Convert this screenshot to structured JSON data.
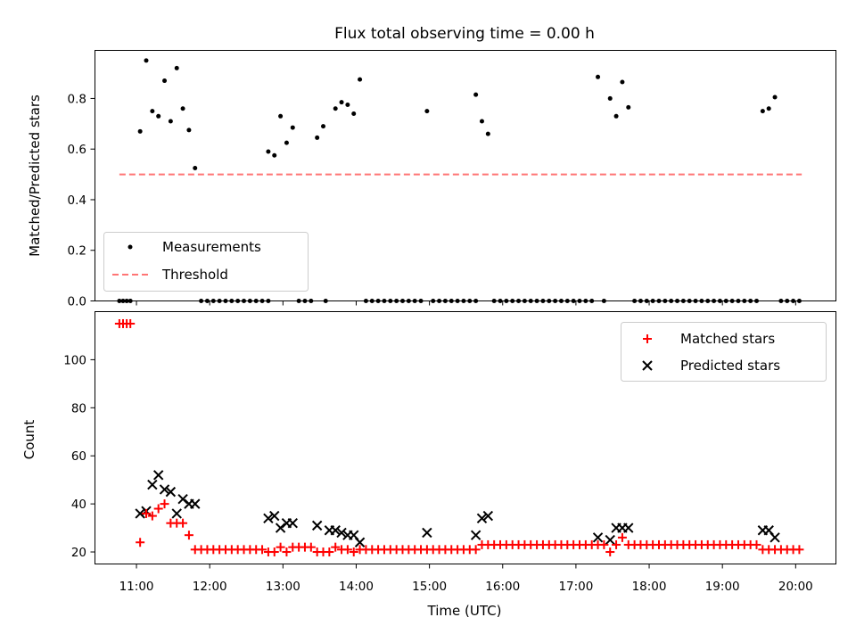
{
  "chart_data": [
    {
      "type": "scatter",
      "title": "Flux total observing time = 0.00 h",
      "xlabel": "",
      "ylabel": "Matched/Predicted stars",
      "ylim": [
        0,
        0.99
      ],
      "yticks": [
        "0.0",
        "0.2",
        "0.4",
        "0.6",
        "0.8"
      ],
      "xlim": [
        "10:26",
        "20:33"
      ],
      "grid": false,
      "legend_position": "lower-left",
      "series": [
        {
          "name": "Measurements",
          "marker": "dot",
          "color": "#000000",
          "points": [
            [
              "10:46",
              0
            ],
            [
              "10:49",
              0
            ],
            [
              "10:52",
              0
            ],
            [
              "10:55",
              0
            ],
            [
              "11:03",
              0.67
            ],
            [
              "11:08",
              0.95
            ],
            [
              "11:13",
              0.75
            ],
            [
              "11:18",
              0.73
            ],
            [
              "11:23",
              0.87
            ],
            [
              "11:28",
              0.71
            ],
            [
              "11:33",
              0.92
            ],
            [
              "11:38",
              0.76
            ],
            [
              "11:43",
              0.675
            ],
            [
              "11:48",
              0.525
            ],
            [
              "11:53",
              0
            ],
            [
              "11:58",
              0
            ],
            [
              "12:03",
              0
            ],
            [
              "12:08",
              0
            ],
            [
              "12:13",
              0
            ],
            [
              "12:18",
              0
            ],
            [
              "12:23",
              0
            ],
            [
              "12:28",
              0
            ],
            [
              "12:33",
              0
            ],
            [
              "12:38",
              0
            ],
            [
              "12:43",
              0
            ],
            [
              "12:48",
              0
            ],
            [
              "12:48",
              0.59
            ],
            [
              "12:53",
              0.575
            ],
            [
              "12:58",
              0.73
            ],
            [
              "13:03",
              0.625
            ],
            [
              "13:08",
              0.685
            ],
            [
              "13:13",
              0
            ],
            [
              "13:18",
              0
            ],
            [
              "13:23",
              0
            ],
            [
              "13:35",
              0
            ],
            [
              "13:28",
              0.645
            ],
            [
              "13:33",
              0.69
            ],
            [
              "13:43",
              0.76
            ],
            [
              "13:48",
              0.785
            ],
            [
              "13:53",
              0.775
            ],
            [
              "13:58",
              0.74
            ],
            [
              "14:03",
              0.875
            ],
            [
              "14:08",
              0
            ],
            [
              "14:13",
              0
            ],
            [
              "14:18",
              0
            ],
            [
              "14:23",
              0
            ],
            [
              "14:28",
              0
            ],
            [
              "14:33",
              0
            ],
            [
              "14:38",
              0
            ],
            [
              "14:43",
              0
            ],
            [
              "14:48",
              0
            ],
            [
              "14:53",
              0
            ],
            [
              "14:58",
              0.75
            ],
            [
              "15:03",
              0
            ],
            [
              "15:08",
              0
            ],
            [
              "15:13",
              0
            ],
            [
              "15:18",
              0
            ],
            [
              "15:23",
              0
            ],
            [
              "15:28",
              0
            ],
            [
              "15:33",
              0
            ],
            [
              "15:38",
              0
            ],
            [
              "15:38",
              0.815
            ],
            [
              "15:43",
              0.71
            ],
            [
              "15:48",
              0.66
            ],
            [
              "15:53",
              0
            ],
            [
              "15:58",
              0
            ],
            [
              "16:03",
              0
            ],
            [
              "16:08",
              0
            ],
            [
              "16:13",
              0
            ],
            [
              "16:18",
              0
            ],
            [
              "16:23",
              0
            ],
            [
              "16:28",
              0
            ],
            [
              "16:33",
              0
            ],
            [
              "16:38",
              0
            ],
            [
              "16:43",
              0
            ],
            [
              "16:48",
              0
            ],
            [
              "16:53",
              0
            ],
            [
              "16:58",
              0
            ],
            [
              "17:03",
              0
            ],
            [
              "17:08",
              0
            ],
            [
              "17:13",
              0
            ],
            [
              "17:23",
              0
            ],
            [
              "17:18",
              0.885
            ],
            [
              "17:28",
              0.8
            ],
            [
              "17:33",
              0.73
            ],
            [
              "17:38",
              0.865
            ],
            [
              "17:43",
              0.765
            ],
            [
              "17:48",
              0
            ],
            [
              "17:53",
              0
            ],
            [
              "17:58",
              0
            ],
            [
              "18:03",
              0
            ],
            [
              "18:08",
              0
            ],
            [
              "18:13",
              0
            ],
            [
              "18:18",
              0
            ],
            [
              "18:23",
              0
            ],
            [
              "18:28",
              0
            ],
            [
              "18:33",
              0
            ],
            [
              "18:38",
              0
            ],
            [
              "18:43",
              0
            ],
            [
              "18:48",
              0
            ],
            [
              "18:53",
              0
            ],
            [
              "18:58",
              0
            ],
            [
              "19:03",
              0
            ],
            [
              "19:08",
              0
            ],
            [
              "19:13",
              0
            ],
            [
              "19:18",
              0
            ],
            [
              "19:23",
              0
            ],
            [
              "19:28",
              0
            ],
            [
              "19:33",
              0.75
            ],
            [
              "19:38",
              0.76
            ],
            [
              "19:43",
              0.805
            ],
            [
              "19:48",
              0
            ],
            [
              "19:53",
              0
            ],
            [
              "19:58",
              0
            ],
            [
              "20:03",
              0
            ]
          ]
        },
        {
          "name": "Threshold",
          "line": "dashed",
          "color": "#ff7575",
          "x": [
            "10:46",
            "20:05"
          ],
          "y": [
            0.5,
            0.5
          ]
        }
      ]
    },
    {
      "type": "scatter",
      "title": "",
      "xlabel": "Time (UTC)",
      "ylabel": "Count",
      "ylim": [
        15,
        120
      ],
      "yticks": [
        "20",
        "40",
        "60",
        "80",
        "100"
      ],
      "xlim": [
        "10:26",
        "20:33"
      ],
      "xticks": [
        "11:00",
        "12:00",
        "13:00",
        "14:00",
        "15:00",
        "16:00",
        "17:00",
        "18:00",
        "19:00",
        "20:00"
      ],
      "grid": false,
      "legend_position": "top-right",
      "series": [
        {
          "name": "Matched stars",
          "marker": "plus",
          "color": "#ff0000",
          "points": [
            [
              "10:46",
              115
            ],
            [
              "10:49",
              115
            ],
            [
              "10:52",
              115
            ],
            [
              "10:55",
              115
            ],
            [
              "11:03",
              24
            ],
            [
              "11:08",
              36
            ],
            [
              "11:13",
              35
            ],
            [
              "11:18",
              38
            ],
            [
              "11:23",
              40
            ],
            [
              "11:28",
              32
            ],
            [
              "11:33",
              32
            ],
            [
              "11:38",
              32
            ],
            [
              "11:43",
              27
            ],
            [
              "11:48",
              21
            ],
            [
              "11:53",
              21
            ],
            [
              "11:58",
              21
            ],
            [
              "12:03",
              21
            ],
            [
              "12:08",
              21
            ],
            [
              "12:13",
              21
            ],
            [
              "12:18",
              21
            ],
            [
              "12:23",
              21
            ],
            [
              "12:28",
              21
            ],
            [
              "12:33",
              21
            ],
            [
              "12:38",
              21
            ],
            [
              "12:43",
              21
            ],
            [
              "12:48",
              20
            ],
            [
              "12:53",
              20
            ],
            [
              "12:58",
              22
            ],
            [
              "13:03",
              20
            ],
            [
              "13:08",
              22
            ],
            [
              "13:13",
              22
            ],
            [
              "13:18",
              22
            ],
            [
              "13:23",
              22
            ],
            [
              "13:28",
              20
            ],
            [
              "13:33",
              20
            ],
            [
              "13:38",
              20
            ],
            [
              "13:43",
              22
            ],
            [
              "13:48",
              21
            ],
            [
              "13:53",
              21
            ],
            [
              "13:58",
              20
            ],
            [
              "14:03",
              21
            ],
            [
              "14:08",
              21
            ],
            [
              "14:13",
              21
            ],
            [
              "14:18",
              21
            ],
            [
              "14:23",
              21
            ],
            [
              "14:28",
              21
            ],
            [
              "14:33",
              21
            ],
            [
              "14:38",
              21
            ],
            [
              "14:43",
              21
            ],
            [
              "14:48",
              21
            ],
            [
              "14:53",
              21
            ],
            [
              "14:58",
              21
            ],
            [
              "15:03",
              21
            ],
            [
              "15:08",
              21
            ],
            [
              "15:13",
              21
            ],
            [
              "15:18",
              21
            ],
            [
              "15:23",
              21
            ],
            [
              "15:28",
              21
            ],
            [
              "15:33",
              21
            ],
            [
              "15:38",
              21
            ],
            [
              "15:43",
              23
            ],
            [
              "15:48",
              23
            ],
            [
              "15:53",
              23
            ],
            [
              "15:58",
              23
            ],
            [
              "16:03",
              23
            ],
            [
              "16:08",
              23
            ],
            [
              "16:13",
              23
            ],
            [
              "16:18",
              23
            ],
            [
              "16:23",
              23
            ],
            [
              "16:28",
              23
            ],
            [
              "16:33",
              23
            ],
            [
              "16:38",
              23
            ],
            [
              "16:43",
              23
            ],
            [
              "16:48",
              23
            ],
            [
              "16:53",
              23
            ],
            [
              "16:58",
              23
            ],
            [
              "17:03",
              23
            ],
            [
              "17:08",
              23
            ],
            [
              "17:13",
              23
            ],
            [
              "17:18",
              23
            ],
            [
              "17:23",
              23
            ],
            [
              "17:28",
              20
            ],
            [
              "17:33",
              23
            ],
            [
              "17:38",
              26
            ],
            [
              "17:43",
              23
            ],
            [
              "17:48",
              23
            ],
            [
              "17:53",
              23
            ],
            [
              "17:58",
              23
            ],
            [
              "18:03",
              23
            ],
            [
              "18:08",
              23
            ],
            [
              "18:13",
              23
            ],
            [
              "18:18",
              23
            ],
            [
              "18:23",
              23
            ],
            [
              "18:28",
              23
            ],
            [
              "18:33",
              23
            ],
            [
              "18:38",
              23
            ],
            [
              "18:43",
              23
            ],
            [
              "18:48",
              23
            ],
            [
              "18:53",
              23
            ],
            [
              "18:58",
              23
            ],
            [
              "19:03",
              23
            ],
            [
              "19:08",
              23
            ],
            [
              "19:13",
              23
            ],
            [
              "19:18",
              23
            ],
            [
              "19:23",
              23
            ],
            [
              "19:28",
              23
            ],
            [
              "19:33",
              21
            ],
            [
              "19:38",
              21
            ],
            [
              "19:43",
              21
            ],
            [
              "19:48",
              21
            ],
            [
              "19:53",
              21
            ],
            [
              "19:58",
              21
            ],
            [
              "20:03",
              21
            ]
          ]
        },
        {
          "name": "Predicted stars",
          "marker": "x",
          "color": "#000000",
          "points": [
            [
              "11:03",
              36
            ],
            [
              "11:08",
              37
            ],
            [
              "11:13",
              48
            ],
            [
              "11:18",
              52
            ],
            [
              "11:23",
              46
            ],
            [
              "11:28",
              45
            ],
            [
              "11:33",
              36
            ],
            [
              "11:38",
              42
            ],
            [
              "11:43",
              40
            ],
            [
              "11:48",
              40
            ],
            [
              "12:48",
              34
            ],
            [
              "12:53",
              35
            ],
            [
              "12:58",
              30
            ],
            [
              "13:03",
              32
            ],
            [
              "13:08",
              32
            ],
            [
              "13:28",
              31
            ],
            [
              "13:38",
              29
            ],
            [
              "13:43",
              29
            ],
            [
              "13:48",
              28
            ],
            [
              "13:53",
              27
            ],
            [
              "13:58",
              27
            ],
            [
              "14:03",
              24
            ],
            [
              "14:58",
              28
            ],
            [
              "15:38",
              27
            ],
            [
              "15:43",
              34
            ],
            [
              "15:48",
              35
            ],
            [
              "17:18",
              26
            ],
            [
              "17:28",
              25
            ],
            [
              "17:33",
              30
            ],
            [
              "17:38",
              30
            ],
            [
              "17:43",
              30
            ],
            [
              "19:33",
              29
            ],
            [
              "19:38",
              29
            ],
            [
              "19:43",
              26
            ]
          ]
        }
      ]
    }
  ]
}
